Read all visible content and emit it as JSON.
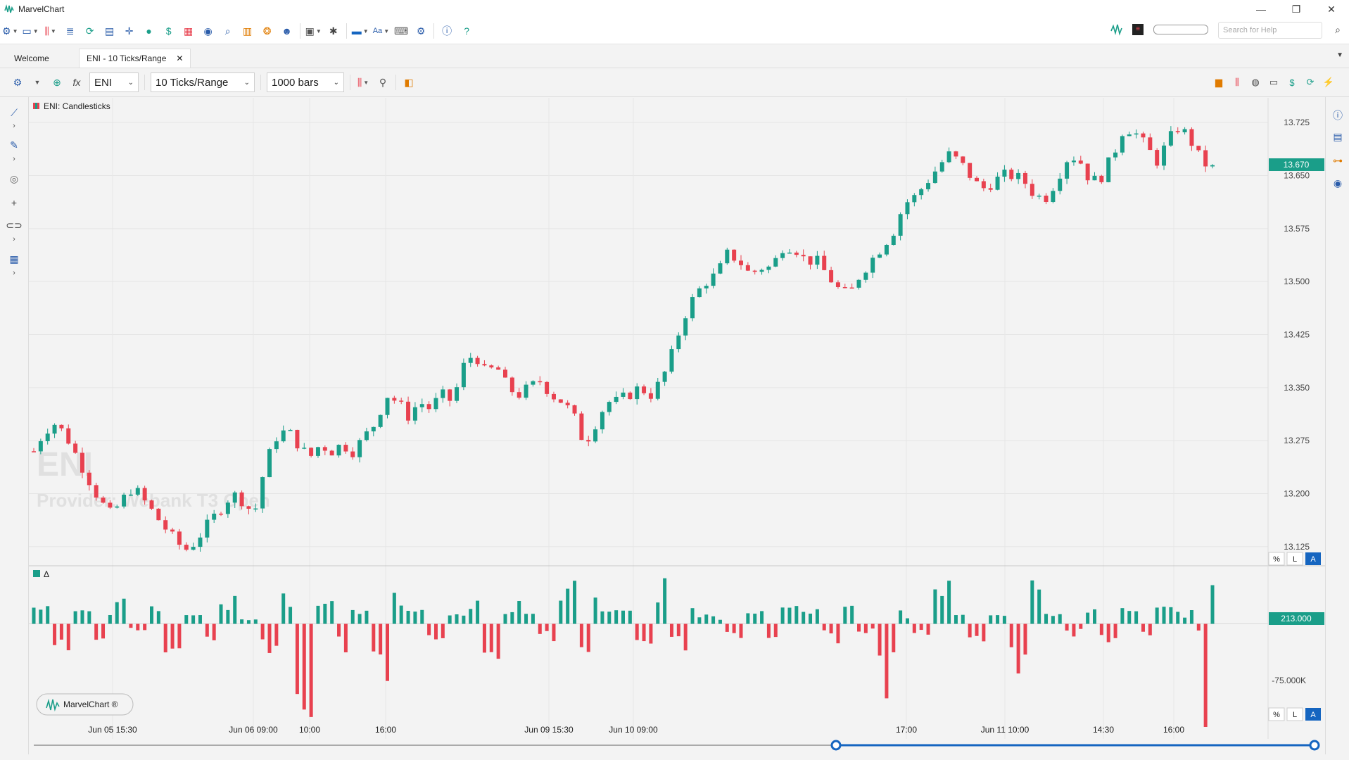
{
  "app": {
    "title": "MarvelChart"
  },
  "window": {
    "minimize": "—",
    "restore": "❐",
    "close": "✕"
  },
  "toolbar": {
    "search_placeholder": "Search for Help"
  },
  "tabs": [
    {
      "label": "Welcome",
      "active": false
    },
    {
      "label": "ENI - 10 Ticks/Range",
      "active": true
    }
  ],
  "chart_toolbar": {
    "symbol": "ENI",
    "interval": "10 Ticks/Range",
    "bars": "1000 bars"
  },
  "price_pane": {
    "legend": "ENI: Candlesticks",
    "watermark_symbol": "ENI",
    "watermark_provider": "Provider: Webank T3 Open",
    "price_ticks": [
      "13.725",
      "13.650",
      "13.575",
      "13.500",
      "13.425",
      "13.350",
      "13.275",
      "13.200",
      "13.125"
    ],
    "current_price": "13.670",
    "scale_buttons": [
      "%",
      "L",
      "A"
    ]
  },
  "delta_pane": {
    "legend": "Δ",
    "current_value": "213.000",
    "tick_label": "-75.000K",
    "scale_buttons": [
      "%",
      "L",
      "A"
    ]
  },
  "time_axis": [
    "Jun 05 15:30",
    "Jun 06 09:00",
    "10:00",
    "16:00",
    "Jun 09 15:30",
    "Jun 10 09:00",
    "17:00",
    "Jun 11 10:00",
    "14:30",
    "16:00"
  ],
  "badge": {
    "label": "MarvelChart ®"
  },
  "colors": {
    "up": "#1a9e89",
    "down": "#e8414f",
    "accent": "#1a9e89",
    "scroll": "#1565c0"
  },
  "chart_data": {
    "type": "candlestick",
    "title": "ENI: Candlesticks",
    "ylim": [
      13.1,
      13.76
    ],
    "candle_count": 171,
    "price_path": [
      13.26,
      13.29,
      13.3,
      13.28,
      13.25,
      13.22,
      13.19,
      13.17,
      13.19,
      13.21,
      13.19,
      13.17,
      13.15,
      13.13,
      13.12,
      13.14,
      13.16,
      13.18,
      13.2,
      13.19,
      13.17,
      13.24,
      13.28,
      13.29,
      13.27,
      13.25,
      13.27,
      13.26,
      13.27,
      13.26,
      13.28,
      13.3,
      13.34,
      13.33,
      13.31,
      13.33,
      13.32,
      13.34,
      13.33,
      13.38,
      13.4,
      13.37,
      13.38,
      13.35,
      13.34,
      13.35,
      13.36,
      13.34,
      13.33,
      13.31,
      13.27,
      13.3,
      13.33,
      13.33,
      13.34,
      13.35,
      13.34,
      13.36,
      13.4,
      13.45,
      13.48,
      13.5,
      13.51,
      13.54,
      13.53,
      13.51,
      13.52,
      13.52,
      13.55,
      13.55,
      13.53,
      13.53,
      13.51,
      13.49,
      13.48,
      13.51,
      13.53,
      13.55,
      13.57,
      13.61,
      13.62,
      13.64,
      13.66,
      13.68,
      13.67,
      13.65,
      13.63,
      13.64,
      13.65,
      13.65,
      13.64,
      13.62,
      13.62,
      13.65,
      13.68,
      13.67,
      13.64,
      13.65,
      13.68,
      13.72,
      13.71,
      13.69,
      13.67,
      13.7,
      13.72,
      13.7,
      13.67,
      13.66
    ],
    "delta_ylim": [
      -125000,
      60000
    ],
    "delta_samples": [
      20000,
      -30000,
      15000,
      -20000,
      25000,
      -10000,
      30000,
      -50000,
      20000,
      -25000,
      35000,
      10000,
      -40000,
      45000,
      -95000,
      30000,
      -30000,
      20000,
      -75000,
      40000,
      15000,
      -20000,
      10000,
      25000,
      -35000,
      30000,
      10000,
      -20000,
      45000,
      -60000,
      30000,
      15000,
      -25000,
      55000,
      -30000,
      20000,
      10000,
      -15000,
      15000,
      -25000,
      40000,
      20000,
      -20000,
      30000,
      -10000,
      -75000,
      15000,
      -15000,
      45000,
      20000,
      -20000,
      10000,
      -60000,
      45000,
      10000,
      -15000,
      20000,
      -20000,
      30000,
      -15000,
      20000,
      15000,
      -10000,
      -112000
    ]
  }
}
